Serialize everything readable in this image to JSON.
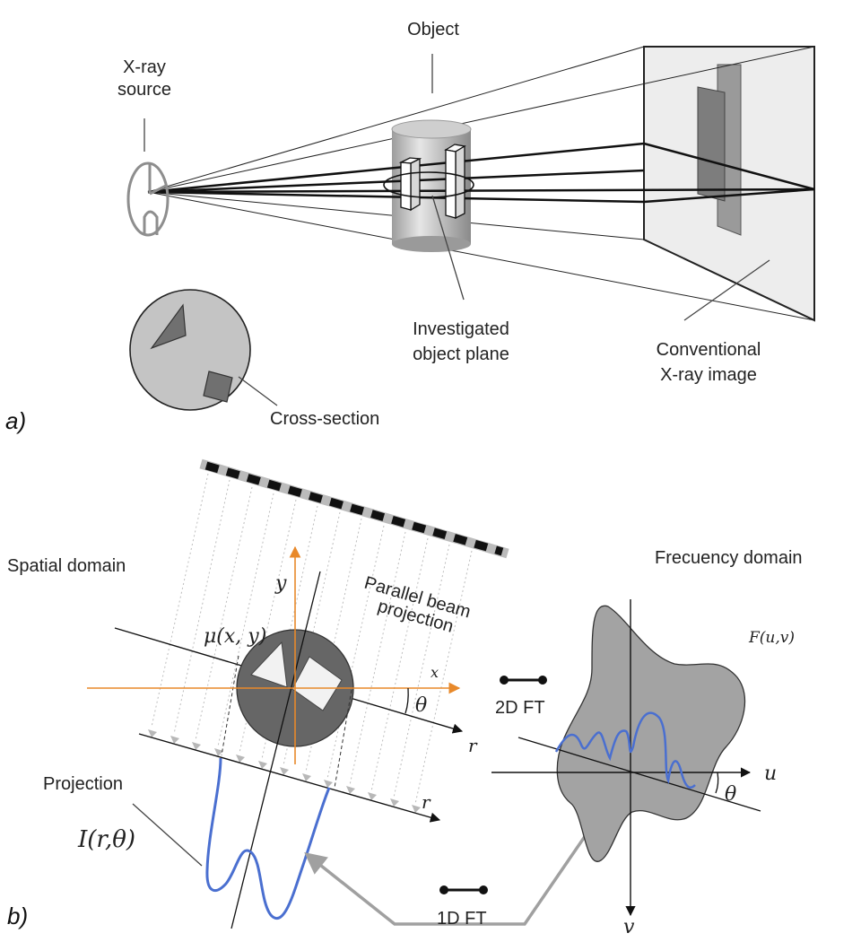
{
  "panel_a": {
    "tag": "a)",
    "labels": {
      "xray_source_1": "X-ray",
      "xray_source_2": "source",
      "object": "Object",
      "investigated_1": "Investigated",
      "investigated_2": "object plane",
      "conventional_1": "Conventional",
      "conventional_2": "X-ray image",
      "cross_section": "Cross-section"
    }
  },
  "panel_b": {
    "tag": "b)",
    "labels": {
      "spatial_domain": "Spatial domain",
      "frequency_domain": "Frecuency domain",
      "parallel_1": "Parallel beam",
      "parallel_2": "projection",
      "projection": "Projection",
      "ft_2d": "2D FT",
      "ft_1d": "1D FT"
    },
    "math": {
      "mu": "μ(x, y)",
      "axis_x": "x",
      "axis_y": "y",
      "theta": "θ",
      "r1": "r",
      "r2": "r",
      "intensity": "I(r,θ)",
      "F": "F(u,v)",
      "u": "u",
      "v": "v",
      "theta_freq": "θ"
    }
  },
  "colors": {
    "orange_axes": "#e8892a",
    "blue_curve": "#4a6fd0",
    "grey_arrow": "#a0a0a0",
    "dark_disk": "#6a6a6a",
    "freq_blob": "#a3a3a3"
  }
}
